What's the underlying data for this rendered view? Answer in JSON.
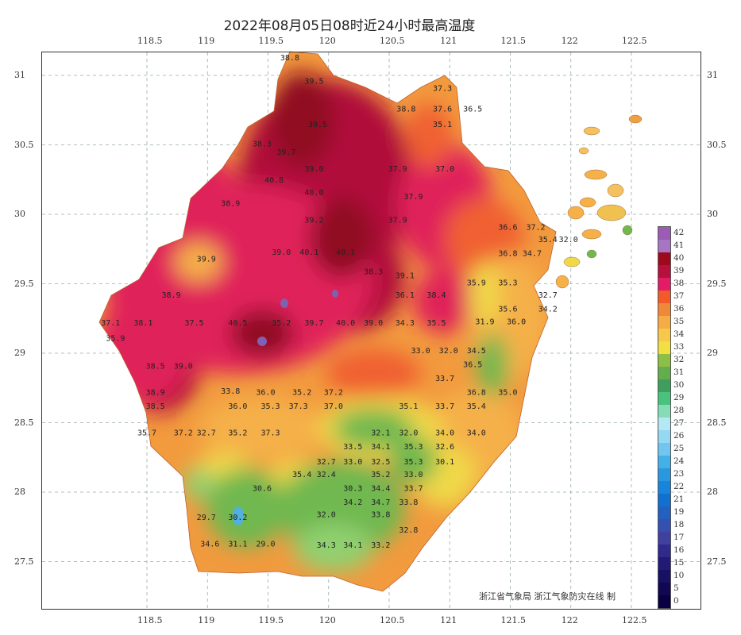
{
  "title": "2022年08月05日08时近24小时最高温度",
  "credit": "浙江省气象局 浙江气象防灾在线 制",
  "axes": {
    "lon_ticks": [
      "118.5",
      "119",
      "119.5",
      "120",
      "120.5",
      "121",
      "121.5",
      "122",
      "122.5"
    ],
    "lat_ticks": [
      "31",
      "30.5",
      "30",
      "29.5",
      "29",
      "28.5",
      "28",
      "27.5"
    ]
  },
  "legend": {
    "labels": [
      "42",
      "41",
      "40",
      "39",
      "38",
      "37",
      "36",
      "35",
      "34",
      "33",
      "32",
      "31",
      "30",
      "29",
      "28",
      "27",
      "26",
      "25",
      "24",
      "23",
      "22",
      "21",
      "19",
      "18",
      "17",
      "16",
      "15",
      "10",
      "5",
      "0"
    ],
    "colors": [
      "#9a5cb4",
      "#a874c4",
      "#9c0a1c",
      "#b8103c",
      "#e41c66",
      "#f25a2a",
      "#f0883a",
      "#f5ac44",
      "#f7c84a",
      "#f2e042",
      "#8cbf44",
      "#64ad4c",
      "#3e9e5c",
      "#48c27c",
      "#86dcb4",
      "#b4e8f4",
      "#94d8f2",
      "#70c6f0",
      "#44b0e8",
      "#2a98e0",
      "#1884dc",
      "#1270d0",
      "#2460c0",
      "#3450b0",
      "#4040a0",
      "#302a8c",
      "#221a74",
      "#181062",
      "#100852",
      "#080042"
    ]
  },
  "stations": [
    [
      119.68,
      31.11,
      "38.8"
    ],
    [
      119.88,
      30.94,
      "39.5"
    ],
    [
      120.94,
      30.89,
      "37.3"
    ],
    [
      120.94,
      30.74,
      "37.6"
    ],
    [
      121.19,
      30.74,
      "36.5"
    ],
    [
      120.64,
      30.74,
      "38.8"
    ],
    [
      120.94,
      30.63,
      "35.1"
    ],
    [
      119.91,
      30.63,
      "39.5"
    ],
    [
      119.45,
      30.49,
      "38.3"
    ],
    [
      119.65,
      30.43,
      "39.7"
    ],
    [
      119.88,
      30.31,
      "39.0"
    ],
    [
      119.55,
      30.23,
      "40.8"
    ],
    [
      119.88,
      30.14,
      "40.0"
    ],
    [
      119.19,
      30.06,
      "38.9"
    ],
    [
      119.88,
      29.94,
      "39.2"
    ],
    [
      120.57,
      29.94,
      "37.9"
    ],
    [
      120.7,
      30.11,
      "37.9"
    ],
    [
      120.57,
      30.31,
      "37.9"
    ],
    [
      120.96,
      30.31,
      "37.0"
    ],
    [
      121.48,
      29.89,
      "36.6"
    ],
    [
      121.71,
      29.89,
      "37.2"
    ],
    [
      121.81,
      29.8,
      "35.4"
    ],
    [
      121.98,
      29.8,
      "32.0"
    ],
    [
      121.48,
      29.7,
      "36.8"
    ],
    [
      121.68,
      29.7,
      "34.7"
    ],
    [
      119.61,
      29.71,
      "39.0"
    ],
    [
      119.84,
      29.71,
      "40.1"
    ],
    [
      120.14,
      29.71,
      "40.1"
    ],
    [
      120.37,
      29.57,
      "38.3"
    ],
    [
      120.63,
      29.54,
      "39.1"
    ],
    [
      118.99,
      29.66,
      "39.9"
    ],
    [
      121.22,
      29.49,
      "35.9"
    ],
    [
      121.48,
      29.49,
      "35.3"
    ],
    [
      121.81,
      29.4,
      "32.7"
    ],
    [
      121.48,
      29.3,
      "35.6"
    ],
    [
      121.81,
      29.3,
      "34.2"
    ],
    [
      121.29,
      29.21,
      "31.9"
    ],
    [
      121.55,
      29.21,
      "36.0"
    ],
    [
      120.63,
      29.4,
      "36.1"
    ],
    [
      120.89,
      29.4,
      "38.4"
    ],
    [
      118.7,
      29.4,
      "38.9"
    ],
    [
      118.47,
      29.2,
      "38.1"
    ],
    [
      118.89,
      29.2,
      "37.5"
    ],
    [
      119.25,
      29.2,
      "40.5"
    ],
    [
      119.61,
      29.2,
      "35.2"
    ],
    [
      119.88,
      29.2,
      "39.7"
    ],
    [
      120.14,
      29.2,
      "40.0"
    ],
    [
      120.37,
      29.2,
      "39.0"
    ],
    [
      120.63,
      29.2,
      "34.3"
    ],
    [
      120.89,
      29.2,
      "35.5"
    ],
    [
      118.2,
      29.2,
      "37.1"
    ],
    [
      118.24,
      29.09,
      "35.9"
    ],
    [
      118.57,
      28.89,
      "38.5"
    ],
    [
      118.8,
      28.89,
      "39.0"
    ],
    [
      118.57,
      28.7,
      "38.9"
    ],
    [
      118.57,
      28.6,
      "38.5"
    ],
    [
      120.76,
      29.0,
      "33.0"
    ],
    [
      120.99,
      29.0,
      "32.0"
    ],
    [
      121.22,
      29.0,
      "34.5"
    ],
    [
      121.19,
      28.9,
      "36.5"
    ],
    [
      120.96,
      28.8,
      "33.7"
    ],
    [
      121.22,
      28.7,
      "36.8"
    ],
    [
      121.48,
      28.7,
      "35.0"
    ],
    [
      119.19,
      28.71,
      "33.8"
    ],
    [
      119.48,
      28.7,
      "36.0"
    ],
    [
      119.78,
      28.7,
      "35.2"
    ],
    [
      120.04,
      28.7,
      "37.2"
    ],
    [
      119.25,
      28.6,
      "36.0"
    ],
    [
      119.52,
      28.6,
      "35.3"
    ],
    [
      119.75,
      28.6,
      "37.3"
    ],
    [
      120.04,
      28.6,
      "37.0"
    ],
    [
      120.66,
      28.6,
      "35.1"
    ],
    [
      120.96,
      28.6,
      "33.7"
    ],
    [
      121.22,
      28.6,
      "35.4"
    ],
    [
      118.5,
      28.41,
      "35.7"
    ],
    [
      118.8,
      28.41,
      "37.2"
    ],
    [
      118.99,
      28.41,
      "32.7"
    ],
    [
      119.25,
      28.41,
      "35.2"
    ],
    [
      119.52,
      28.41,
      "37.3"
    ],
    [
      120.43,
      28.41,
      "32.1"
    ],
    [
      120.66,
      28.41,
      "32.0"
    ],
    [
      120.96,
      28.41,
      "34.0"
    ],
    [
      121.22,
      28.41,
      "34.0"
    ],
    [
      120.2,
      28.31,
      "33.5"
    ],
    [
      120.43,
      28.31,
      "34.1"
    ],
    [
      120.7,
      28.31,
      "35.3"
    ],
    [
      120.96,
      28.31,
      "32.6"
    ],
    [
      119.98,
      28.2,
      "32.7"
    ],
    [
      120.2,
      28.2,
      "33.0"
    ],
    [
      120.43,
      28.2,
      "32.5"
    ],
    [
      120.7,
      28.2,
      "35.3"
    ],
    [
      120.96,
      28.2,
      "30.1"
    ],
    [
      119.78,
      28.11,
      "35.4"
    ],
    [
      119.98,
      28.11,
      "32.4"
    ],
    [
      120.43,
      28.11,
      "35.2"
    ],
    [
      120.7,
      28.11,
      "33.0"
    ],
    [
      119.45,
      28.01,
      "30.6"
    ],
    [
      120.2,
      28.01,
      "30.3"
    ],
    [
      120.43,
      28.01,
      "34.4"
    ],
    [
      120.7,
      28.01,
      "33.7"
    ],
    [
      120.2,
      27.91,
      "34.2"
    ],
    [
      120.43,
      27.91,
      "34.7"
    ],
    [
      120.66,
      27.91,
      "33.8"
    ],
    [
      119.98,
      27.82,
      "32.0"
    ],
    [
      120.43,
      27.82,
      "33.8"
    ],
    [
      120.66,
      27.71,
      "32.8"
    ],
    [
      118.99,
      27.8,
      "29.7"
    ],
    [
      119.25,
      27.8,
      "30.2"
    ],
    [
      119.02,
      27.61,
      "34.6"
    ],
    [
      119.25,
      27.61,
      "31.1"
    ],
    [
      119.48,
      27.61,
      "29.0"
    ],
    [
      119.98,
      27.6,
      "34.3"
    ],
    [
      120.2,
      27.6,
      "34.1"
    ],
    [
      120.43,
      27.6,
      "33.2"
    ]
  ]
}
